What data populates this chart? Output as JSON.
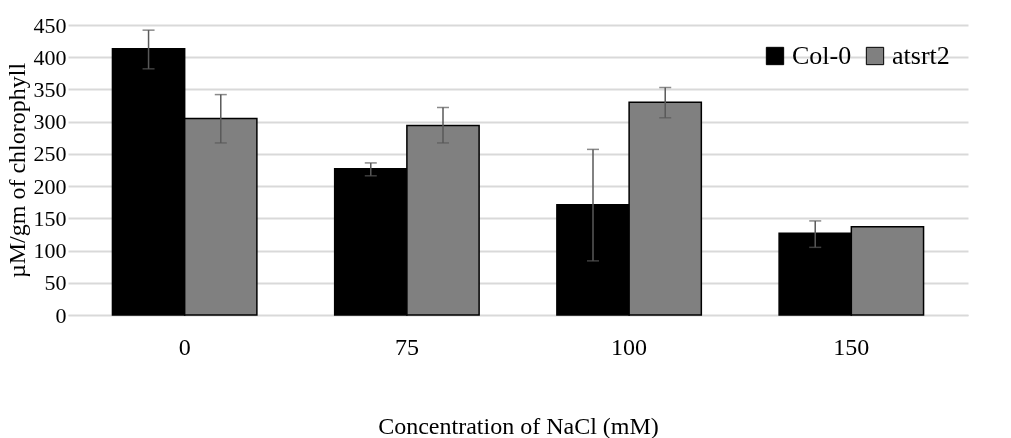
{
  "chart_data": {
    "type": "bar",
    "xlabel": "Concentration of NaCl (mM)",
    "ylabel": "µM/gm of chlorophyll",
    "categories": [
      "0",
      "75",
      "100",
      "150"
    ],
    "series": [
      {
        "name": "Col-0",
        "color": "#000000",
        "values": [
          413,
          227,
          171,
          127
        ],
        "errors": [
          [
            382,
            442
          ],
          [
            216,
            236
          ],
          [
            84,
            257
          ],
          [
            105,
            146
          ]
        ]
      },
      {
        "name": "atsrt2",
        "color": "#808080",
        "values": [
          305,
          294,
          330,
          137
        ],
        "errors": [
          [
            267,
            342
          ],
          [
            267,
            322
          ],
          [
            306,
            353
          ],
          null
        ]
      }
    ],
    "ylim": [
      0,
      450
    ],
    "yticks": [
      0,
      50,
      100,
      150,
      200,
      250,
      300,
      350,
      400,
      450
    ],
    "grid": "y",
    "legend": "top right"
  }
}
